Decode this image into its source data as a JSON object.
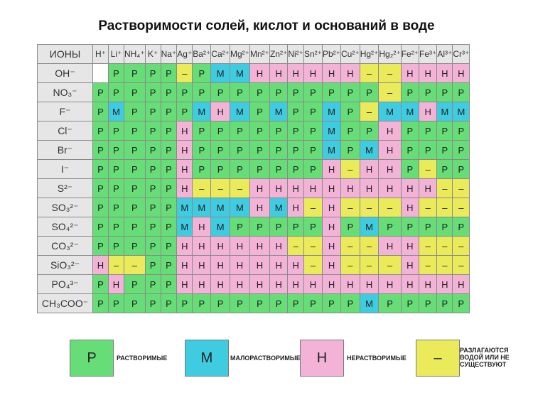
{
  "title": "Растворимости солей, кислот и оснований в воде",
  "corner_label": "ИОНЫ",
  "colors": {
    "P": "#66dd77",
    "M": "#3fcbe0",
    "H": "#f2b3d6",
    "D": "#ebea5a",
    "header": "#e6e6e6"
  },
  "cations": [
    "H⁺",
    "Li⁺",
    "NH₄⁺",
    "K⁺",
    "Na⁺",
    "Ag⁺",
    "Ba²⁺",
    "Ca²⁺",
    "Mg²⁺",
    "Mn²⁺",
    "Zn²⁺",
    "Ni²⁺",
    "Sn²⁺",
    "Pb²⁺",
    "Cu²⁺",
    "Hg²⁺",
    "Hg₂²⁺",
    "Fe²⁺",
    "Fe³⁺",
    "Al³⁺",
    "Cr³⁺"
  ],
  "rows": [
    {
      "anion": "OH⁻",
      "cells": [
        "E",
        "P",
        "P",
        "P",
        "P",
        "D",
        "P",
        "M",
        "M",
        "H",
        "H",
        "H",
        "H",
        "H",
        "H",
        "D",
        "D",
        "H",
        "H",
        "H",
        "H"
      ]
    },
    {
      "anion": "NO₃⁻",
      "cells": [
        "P",
        "P",
        "P",
        "P",
        "P",
        "P",
        "P",
        "P",
        "P",
        "P",
        "P",
        "P",
        "P",
        "P",
        "P",
        "P",
        "D",
        "P",
        "P",
        "P",
        "P"
      ]
    },
    {
      "anion": "F⁻",
      "cells": [
        "P",
        "M",
        "P",
        "P",
        "P",
        "P",
        "M",
        "H",
        "M",
        "P",
        "M",
        "P",
        "P",
        "M",
        "P",
        "D",
        "M",
        "M",
        "H",
        "M",
        "M"
      ]
    },
    {
      "anion": "Cl⁻",
      "cells": [
        "P",
        "P",
        "P",
        "P",
        "P",
        "H",
        "P",
        "P",
        "P",
        "P",
        "P",
        "P",
        "P",
        "M",
        "P",
        "P",
        "H",
        "P",
        "P",
        "P",
        "P"
      ]
    },
    {
      "anion": "Br⁻",
      "cells": [
        "P",
        "P",
        "P",
        "P",
        "P",
        "H",
        "P",
        "P",
        "P",
        "P",
        "P",
        "P",
        "P",
        "M",
        "P",
        "M",
        "H",
        "P",
        "P",
        "P",
        "P"
      ]
    },
    {
      "anion": "I⁻",
      "cells": [
        "P",
        "P",
        "P",
        "P",
        "P",
        "H",
        "P",
        "P",
        "P",
        "P",
        "P",
        "P",
        "P",
        "H",
        "D",
        "H",
        "H",
        "P",
        "D",
        "P",
        "P"
      ]
    },
    {
      "anion": "S²⁻",
      "cells": [
        "P",
        "P",
        "P",
        "P",
        "P",
        "H",
        "D",
        "D",
        "D",
        "H",
        "H",
        "H",
        "H",
        "H",
        "H",
        "H",
        "H",
        "H",
        "H",
        "D",
        "D"
      ]
    },
    {
      "anion": "SO₃²⁻",
      "cells": [
        "P",
        "P",
        "P",
        "P",
        "P",
        "M",
        "M",
        "M",
        "M",
        "H",
        "M",
        "H",
        "D",
        "H",
        "D",
        "D",
        "D",
        "H",
        "D",
        "D",
        "D"
      ]
    },
    {
      "anion": "SO₄²⁻",
      "cells": [
        "P",
        "P",
        "P",
        "P",
        "P",
        "M",
        "H",
        "M",
        "P",
        "P",
        "P",
        "P",
        "P",
        "H",
        "P",
        "M",
        "P",
        "P",
        "P",
        "P",
        "P"
      ]
    },
    {
      "anion": "CO₃²⁻",
      "cells": [
        "P",
        "P",
        "P",
        "P",
        "P",
        "H",
        "H",
        "H",
        "H",
        "H",
        "H",
        "D",
        "D",
        "H",
        "D",
        "D",
        "H",
        "H",
        "D",
        "D",
        "D"
      ]
    },
    {
      "anion": "SiO₃²⁻",
      "cells": [
        "H",
        "D",
        "D",
        "P",
        "P",
        "H",
        "H",
        "H",
        "H",
        "H",
        "H",
        "H",
        "D",
        "H",
        "D",
        "D",
        "D",
        "H",
        "D",
        "D",
        "D"
      ]
    },
    {
      "anion": "PO₄³⁻",
      "cells": [
        "P",
        "H",
        "P",
        "P",
        "P",
        "H",
        "H",
        "H",
        "H",
        "H",
        "H",
        "H",
        "H",
        "H",
        "H",
        "H",
        "H",
        "H",
        "H",
        "H",
        "H"
      ]
    },
    {
      "anion": "CH₃COO⁻",
      "cells": [
        "P",
        "P",
        "P",
        "P",
        "P",
        "P",
        "P",
        "P",
        "P",
        "P",
        "P",
        "P",
        "P",
        "P",
        "P",
        "M",
        "P",
        "P",
        "P",
        "P",
        "P"
      ]
    }
  ],
  "symbols": {
    "P": "Р",
    "M": "М",
    "H": "Н",
    "D": "–",
    "E": ""
  },
  "legend": [
    {
      "symbol": "Р",
      "label": "РАСТВОРИМЫЕ",
      "key": "P"
    },
    {
      "symbol": "М",
      "label": "МАЛОРАСТВОРИМЫЕ",
      "key": "M"
    },
    {
      "symbol": "Н",
      "label": "НЕРАСТВОРИМЫЕ",
      "key": "H"
    },
    {
      "symbol": "–",
      "label": "РАЗЛАГАЮТСЯ ВОДОЙ ИЛИ НЕ СУЩЕСТВУЮТ",
      "key": "D"
    }
  ]
}
